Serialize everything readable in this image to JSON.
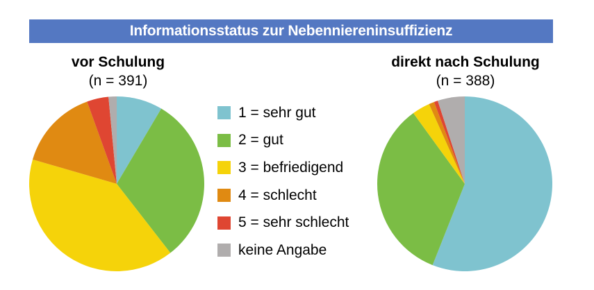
{
  "title": "Informationsstatus zur Nebenniereninsuffizienz",
  "chart_data": [
    {
      "type": "pie",
      "title": "vor Schulung",
      "subtitle": "(n = 391)",
      "categories": [
        "1 = sehr gut",
        "2 = gut",
        "3 = befriedigend",
        "4 = schlecht",
        "5 = sehr schlecht",
        "keine Angabe"
      ],
      "values": [
        8.5,
        31,
        40,
        15,
        4,
        1.5
      ],
      "colors": [
        "#7fc3cf",
        "#7bbd45",
        "#f5d30a",
        "#e08a12",
        "#df4632",
        "#b0adad"
      ]
    },
    {
      "type": "pie",
      "title": "direkt nach Schulung",
      "subtitle": "(n = 388)",
      "categories": [
        "1 = sehr gut",
        "2 = gut",
        "3 = befriedigend",
        "4 = schlecht",
        "5 = sehr schlecht",
        "keine Angabe"
      ],
      "values": [
        56,
        34,
        3.3,
        1,
        0.7,
        5
      ],
      "colors": [
        "#7fc3cf",
        "#7bbd45",
        "#f5d30a",
        "#e08a12",
        "#df4632",
        "#b0adad"
      ]
    }
  ],
  "legend": {
    "items": [
      {
        "label": "1 = sehr gut",
        "color": "#7fc3cf"
      },
      {
        "label": "2 = gut",
        "color": "#7bbd45"
      },
      {
        "label": "3 = befriedigend",
        "color": "#f5d30a"
      },
      {
        "label": "4 = schlecht",
        "color": "#e08a12"
      },
      {
        "label": "5 = sehr schlecht",
        "color": "#df4632"
      },
      {
        "label": "keine Angabe",
        "color": "#b0adad"
      }
    ]
  }
}
